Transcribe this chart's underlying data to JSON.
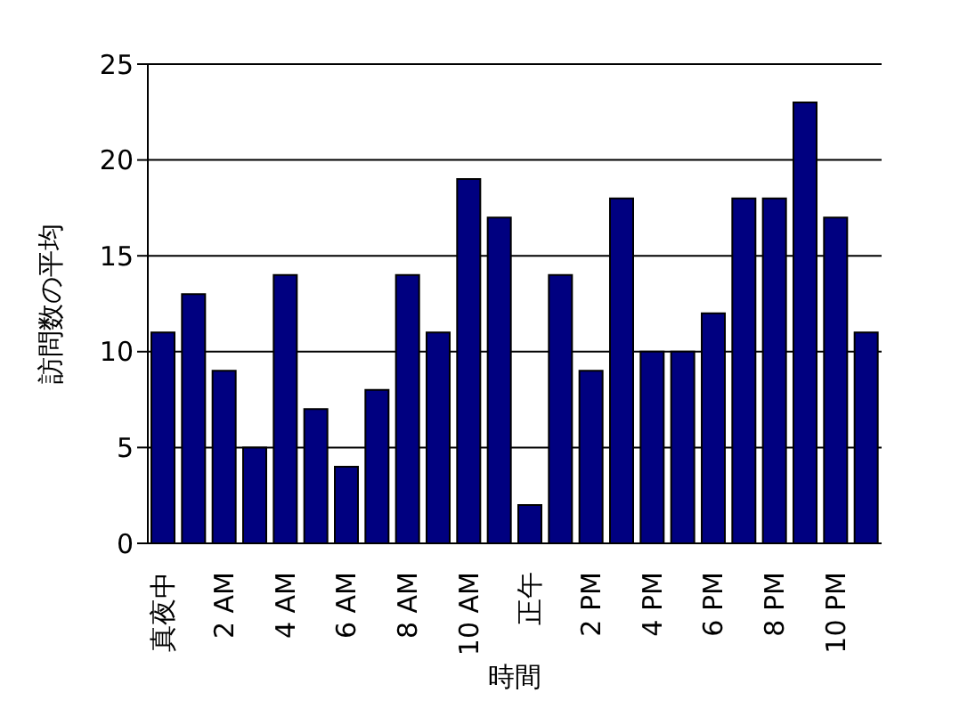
{
  "chart_data": {
    "type": "bar",
    "xlabel": "時間",
    "ylabel": "訪問数の平均",
    "categories": [
      "真夜中",
      null,
      "2 AM",
      null,
      "4 AM",
      null,
      "6 AM",
      null,
      "8 AM",
      null,
      "10 AM",
      null,
      "正午",
      null,
      "2 PM",
      null,
      "4 PM",
      null,
      "6 PM",
      null,
      "8 PM",
      null,
      "10 PM",
      null
    ],
    "values": [
      11,
      13,
      9,
      5,
      14,
      7,
      4,
      8,
      14,
      11,
      19,
      17,
      2,
      14,
      9,
      18,
      10,
      10,
      12,
      18,
      18,
      23,
      17,
      11
    ],
    "color": "#000080",
    "ylim": [
      0,
      25
    ],
    "yticks": [
      0,
      5,
      10,
      15,
      20,
      25
    ],
    "grid": "y"
  }
}
